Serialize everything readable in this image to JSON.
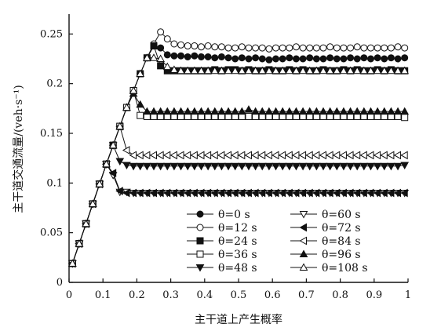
{
  "chart_data": {
    "type": "line",
    "xlabel": "主干道上产生概率",
    "ylabel": "主干道交通流量/(veh·s⁻¹)",
    "xlim": [
      0,
      1
    ],
    "ylim": [
      0,
      0.27
    ],
    "xticks": [
      "0",
      "0.1",
      "0.2",
      "0.3",
      "0.4",
      "0.5",
      "0.6",
      "0.7",
      "0.8",
      "0.9",
      "1"
    ],
    "yticks": [
      "0",
      "0.05",
      "0.1",
      "0.15",
      "0.2",
      "0.25"
    ],
    "grid": false,
    "legend_position": "lower-right",
    "x": [
      0.01,
      0.03,
      0.05,
      0.07,
      0.09,
      0.11,
      0.13,
      0.15,
      0.17,
      0.19,
      0.21,
      0.23,
      0.25,
      0.27,
      0.29,
      0.31,
      0.33,
      0.35,
      0.37,
      0.39,
      0.41,
      0.43,
      0.45,
      0.47,
      0.49,
      0.51,
      0.53,
      0.55,
      0.57,
      0.59,
      0.61,
      0.63,
      0.65,
      0.67,
      0.69,
      0.71,
      0.73,
      0.75,
      0.77,
      0.79,
      0.81,
      0.83,
      0.85,
      0.87,
      0.89,
      0.91,
      0.93,
      0.95,
      0.97,
      0.99
    ],
    "series": [
      {
        "name": "θ=0 s",
        "marker": "circle-filled",
        "values": [
          0.019,
          0.039,
          0.059,
          0.079,
          0.099,
          0.119,
          0.138,
          0.157,
          0.176,
          0.193,
          0.21,
          0.226,
          0.238,
          0.236,
          0.229,
          0.228,
          0.228,
          0.227,
          0.228,
          0.227,
          0.227,
          0.226,
          0.227,
          0.226,
          0.225,
          0.226,
          0.225,
          0.226,
          0.225,
          0.224,
          0.225,
          0.225,
          0.226,
          0.225,
          0.225,
          0.226,
          0.225,
          0.225,
          0.226,
          0.225,
          0.225,
          0.226,
          0.225,
          0.226,
          0.225,
          0.226,
          0.225,
          0.226,
          0.225,
          0.226
        ]
      },
      {
        "name": "θ=12 s",
        "marker": "circle-open",
        "values": [
          0.019,
          0.039,
          0.059,
          0.079,
          0.099,
          0.119,
          0.138,
          0.157,
          0.176,
          0.193,
          0.21,
          0.226,
          0.24,
          0.252,
          0.245,
          0.24,
          0.239,
          0.238,
          0.238,
          0.237,
          0.238,
          0.237,
          0.237,
          0.236,
          0.236,
          0.237,
          0.236,
          0.236,
          0.236,
          0.235,
          0.236,
          0.236,
          0.236,
          0.237,
          0.236,
          0.236,
          0.236,
          0.236,
          0.237,
          0.236,
          0.236,
          0.236,
          0.237,
          0.236,
          0.236,
          0.236,
          0.236,
          0.236,
          0.237,
          0.236
        ]
      },
      {
        "name": "θ=24 s",
        "marker": "square-filled",
        "values": [
          0.019,
          0.039,
          0.059,
          0.079,
          0.099,
          0.119,
          0.138,
          0.157,
          0.176,
          0.193,
          0.21,
          0.226,
          0.238,
          0.218,
          0.213,
          0.213,
          0.213,
          0.213,
          0.213,
          0.213,
          0.213,
          0.214,
          0.213,
          0.214,
          0.214,
          0.213,
          0.214,
          0.213,
          0.213,
          0.214,
          0.213,
          0.213,
          0.214,
          0.213,
          0.214,
          0.213,
          0.213,
          0.214,
          0.213,
          0.213,
          0.214,
          0.213,
          0.214,
          0.213,
          0.213,
          0.214,
          0.213,
          0.214,
          0.213,
          0.213
        ]
      },
      {
        "name": "θ=36 s",
        "marker": "square-open",
        "values": [
          0.019,
          0.039,
          0.059,
          0.079,
          0.099,
          0.119,
          0.138,
          0.157,
          0.176,
          0.193,
          0.168,
          0.167,
          0.167,
          0.167,
          0.167,
          0.167,
          0.167,
          0.167,
          0.167,
          0.167,
          0.167,
          0.167,
          0.167,
          0.167,
          0.167,
          0.167,
          0.167,
          0.167,
          0.167,
          0.167,
          0.167,
          0.167,
          0.167,
          0.167,
          0.167,
          0.167,
          0.167,
          0.167,
          0.167,
          0.167,
          0.167,
          0.167,
          0.167,
          0.167,
          0.167,
          0.167,
          0.167,
          0.167,
          0.167,
          0.166
        ]
      },
      {
        "name": "θ=48 s",
        "marker": "triangle-down-filled",
        "values": [
          0.019,
          0.039,
          0.059,
          0.079,
          0.099,
          0.119,
          0.138,
          0.122,
          0.118,
          0.117,
          0.117,
          0.117,
          0.117,
          0.117,
          0.117,
          0.117,
          0.117,
          0.117,
          0.117,
          0.117,
          0.117,
          0.117,
          0.117,
          0.117,
          0.117,
          0.117,
          0.117,
          0.117,
          0.117,
          0.117,
          0.117,
          0.117,
          0.117,
          0.117,
          0.117,
          0.117,
          0.117,
          0.117,
          0.117,
          0.117,
          0.117,
          0.117,
          0.117,
          0.117,
          0.117,
          0.117,
          0.117,
          0.117,
          0.117,
          0.118
        ]
      },
      {
        "name": "θ=60 s",
        "marker": "triangle-down-open",
        "values": [
          0.019,
          0.039,
          0.059,
          0.079,
          0.099,
          0.119,
          0.108,
          0.091,
          0.091,
          0.09,
          0.09,
          0.09,
          0.09,
          0.09,
          0.09,
          0.09,
          0.09,
          0.09,
          0.09,
          0.09,
          0.09,
          0.09,
          0.09,
          0.09,
          0.09,
          0.09,
          0.09,
          0.09,
          0.09,
          0.09,
          0.09,
          0.09,
          0.09,
          0.09,
          0.09,
          0.09,
          0.09,
          0.09,
          0.09,
          0.09,
          0.09,
          0.09,
          0.09,
          0.09,
          0.09,
          0.09,
          0.09,
          0.09,
          0.09,
          0.09
        ]
      },
      {
        "name": "θ=72 s",
        "marker": "triangle-left-filled",
        "values": [
          0.019,
          0.039,
          0.059,
          0.079,
          0.099,
          0.119,
          0.11,
          0.092,
          0.09,
          0.09,
          0.09,
          0.09,
          0.09,
          0.09,
          0.09,
          0.09,
          0.09,
          0.09,
          0.09,
          0.09,
          0.09,
          0.09,
          0.09,
          0.09,
          0.09,
          0.09,
          0.09,
          0.09,
          0.09,
          0.09,
          0.09,
          0.09,
          0.09,
          0.09,
          0.09,
          0.09,
          0.09,
          0.09,
          0.09,
          0.09,
          0.09,
          0.09,
          0.09,
          0.09,
          0.09,
          0.09,
          0.09,
          0.09,
          0.09,
          0.09
        ]
      },
      {
        "name": "θ=84 s",
        "marker": "triangle-left-open",
        "values": [
          0.019,
          0.039,
          0.059,
          0.079,
          0.099,
          0.119,
          0.138,
          0.157,
          0.133,
          0.128,
          0.128,
          0.128,
          0.128,
          0.128,
          0.128,
          0.128,
          0.128,
          0.128,
          0.128,
          0.128,
          0.128,
          0.128,
          0.128,
          0.128,
          0.128,
          0.128,
          0.128,
          0.128,
          0.128,
          0.128,
          0.128,
          0.128,
          0.128,
          0.128,
          0.128,
          0.128,
          0.128,
          0.128,
          0.128,
          0.128,
          0.128,
          0.128,
          0.128,
          0.128,
          0.128,
          0.128,
          0.128,
          0.128,
          0.128,
          0.128
        ]
      },
      {
        "name": "θ=96 s",
        "marker": "triangle-up-filled",
        "values": [
          0.019,
          0.039,
          0.059,
          0.079,
          0.099,
          0.119,
          0.138,
          0.157,
          0.176,
          0.19,
          0.179,
          0.172,
          0.172,
          0.172,
          0.172,
          0.172,
          0.172,
          0.172,
          0.172,
          0.172,
          0.172,
          0.172,
          0.172,
          0.172,
          0.172,
          0.172,
          0.174,
          0.172,
          0.172,
          0.172,
          0.172,
          0.172,
          0.172,
          0.172,
          0.172,
          0.172,
          0.172,
          0.172,
          0.172,
          0.172,
          0.172,
          0.172,
          0.172,
          0.172,
          0.172,
          0.172,
          0.172,
          0.172,
          0.172,
          0.172
        ]
      },
      {
        "name": "θ=108 s",
        "marker": "triangle-up-open",
        "values": [
          0.019,
          0.039,
          0.059,
          0.079,
          0.099,
          0.119,
          0.138,
          0.157,
          0.176,
          0.193,
          0.21,
          0.226,
          0.226,
          0.225,
          0.217,
          0.214,
          0.213,
          0.213,
          0.213,
          0.213,
          0.213,
          0.213,
          0.213,
          0.213,
          0.213,
          0.213,
          0.213,
          0.213,
          0.213,
          0.213,
          0.213,
          0.213,
          0.213,
          0.213,
          0.213,
          0.213,
          0.213,
          0.213,
          0.213,
          0.213,
          0.213,
          0.213,
          0.213,
          0.213,
          0.213,
          0.213,
          0.213,
          0.213,
          0.213,
          0.213
        ]
      }
    ]
  }
}
